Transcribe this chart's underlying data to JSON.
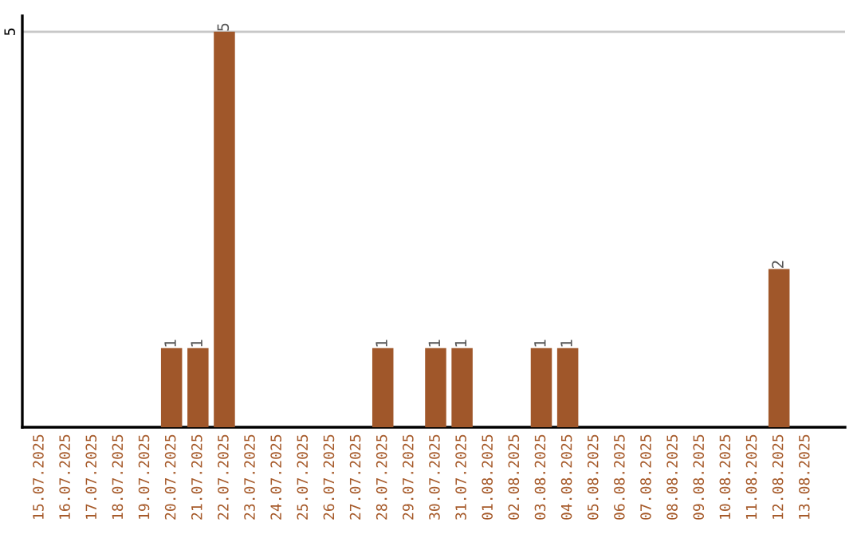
{
  "chart_data": {
    "type": "bar",
    "categories": [
      "15.07.2025",
      "16.07.2025",
      "17.07.2025",
      "18.07.2025",
      "19.07.2025",
      "20.07.2025",
      "21.07.2025",
      "22.07.2025",
      "23.07.2025",
      "24.07.2025",
      "25.07.2025",
      "26.07.2025",
      "27.07.2025",
      "28.07.2025",
      "29.07.2025",
      "30.07.2025",
      "31.07.2025",
      "01.08.2025",
      "02.08.2025",
      "03.08.2025",
      "04.08.2025",
      "05.08.2025",
      "06.08.2025",
      "07.08.2025",
      "08.08.2025",
      "09.08.2025",
      "10.08.2025",
      "11.08.2025",
      "12.08.2025",
      "13.08.2025"
    ],
    "values": [
      0,
      0,
      0,
      0,
      0,
      1,
      1,
      5,
      0,
      0,
      0,
      0,
      0,
      1,
      0,
      1,
      1,
      0,
      0,
      1,
      1,
      0,
      0,
      0,
      0,
      0,
      0,
      0,
      2,
      0
    ],
    "value_labels": [
      null,
      null,
      null,
      null,
      null,
      "1",
      "1",
      "5",
      null,
      null,
      null,
      null,
      null,
      "1",
      null,
      "1",
      "1",
      null,
      null,
      "1",
      "1",
      null,
      null,
      null,
      null,
      null,
      null,
      null,
      "2",
      null
    ],
    "color": "#a0572a",
    "ylim": [
      0,
      5.2
    ],
    "yticks": [
      5
    ],
    "grid": "y",
    "legend": false
  }
}
